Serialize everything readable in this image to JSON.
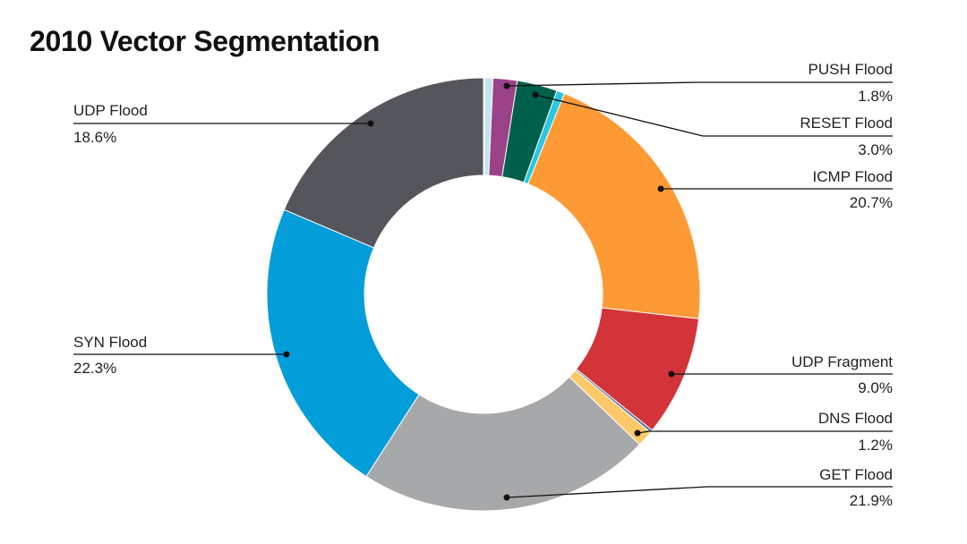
{
  "chart_data": {
    "type": "pie",
    "style": "donut",
    "title": "2010 Vector Segmentation",
    "legend": "none",
    "slices": [
      {
        "label": "",
        "value": 0.1,
        "color": "#f1edb0"
      },
      {
        "label": "",
        "value": 0.6,
        "color": "#c2e6ee"
      },
      {
        "label": "PUSH Flood",
        "value": 1.8,
        "display": "1.8%",
        "color": "#9b4289"
      },
      {
        "label": "RESET Flood",
        "value": 3.0,
        "display": "3.0%",
        "color": "#00604c"
      },
      {
        "label": "",
        "value": 0.6,
        "color": "#2bc7de"
      },
      {
        "label": "ICMP Flood",
        "value": 20.7,
        "display": "20.7%",
        "color": "#fe9a35"
      },
      {
        "label": "UDP Fragment",
        "value": 9.0,
        "display": "9.0%",
        "color": "#d2343a"
      },
      {
        "label": "",
        "value": 0.2,
        "color": "#4f6b9a"
      },
      {
        "label": "DNS Flood",
        "value": 1.2,
        "display": "1.2%",
        "color": "#fdc968"
      },
      {
        "label": "GET Flood",
        "value": 21.9,
        "display": "21.9%",
        "color": "#a7a8aa"
      },
      {
        "label": "SYN Flood",
        "value": 22.3,
        "display": "22.3%",
        "color": "#039dda"
      },
      {
        "label": "UDP Flood",
        "value": 18.6,
        "display": "18.6%",
        "color": "#55565b"
      }
    ]
  }
}
